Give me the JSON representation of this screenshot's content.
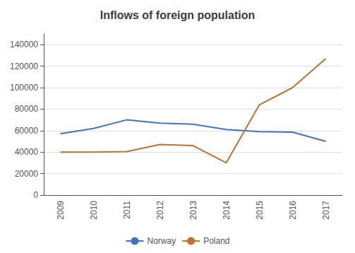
{
  "chart_data": {
    "type": "line",
    "title": "Inflows of foreign population",
    "categories": [
      "2009",
      "2010",
      "2011",
      "2012",
      "2013",
      "2014",
      "2015",
      "2016",
      "2017"
    ],
    "series": [
      {
        "name": "Norway",
        "color": "#4472C4",
        "values": [
          57000,
          62000,
          70000,
          67000,
          66000,
          61000,
          59000,
          58500,
          50000
        ]
      },
      {
        "name": "Poland",
        "color": "#C07030",
        "values": [
          40000,
          40000,
          40500,
          47000,
          46000,
          30000,
          84000,
          100000,
          127000
        ]
      }
    ],
    "ylim": [
      0,
      150000
    ],
    "yticks": [
      0,
      20000,
      40000,
      60000,
      80000,
      100000,
      120000,
      140000
    ],
    "grid": true,
    "legend": "bottom"
  }
}
